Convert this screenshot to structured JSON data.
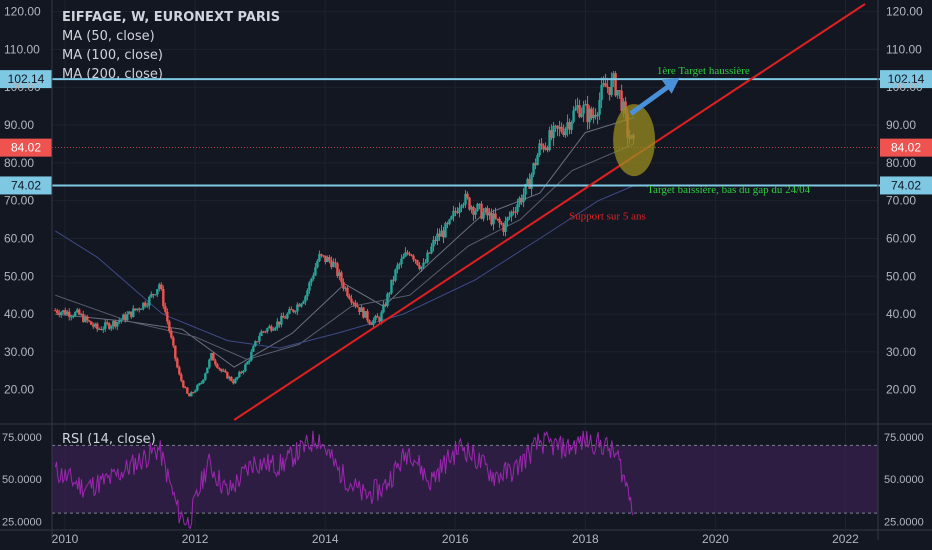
{
  "legend": {
    "symbol": "EIFFAGE, W, EURONEXT PARIS",
    "ma50": "MA (50, close)",
    "ma100": "MA (100, close)",
    "ma200": "MA (200, close)"
  },
  "rsi_legend": "RSI (14, close)",
  "colors": {
    "background": "#131722",
    "level_line": "#7ec8e3",
    "trend_line": "#e02020",
    "price_badge": "#ef5350",
    "rsi_fill": "#3a2150",
    "rsi_line": "#9c27b0",
    "arrow": "#4a90d9",
    "ellipse": "#9a8d1f",
    "target_text": "#2ecc40",
    "support_text": "#e02020"
  },
  "chart_data": [
    {
      "type": "candlestick",
      "panel": "price",
      "x_ticks": [
        "2010",
        "2012",
        "2014",
        "2016",
        "2018",
        "2020",
        "2022"
      ],
      "y_ticks": [
        "20.00",
        "30.00",
        "40.00",
        "50.00",
        "60.00",
        "70.00",
        "80.00",
        "90.00",
        "100.00",
        "110.00",
        "120.00"
      ],
      "ylim": [
        12,
        122
      ],
      "xlim": [
        2009.8,
        2022.5
      ],
      "price_path": [
        [
          2009.85,
          41
        ],
        [
          2010.2,
          40
        ],
        [
          2010.5,
          36
        ],
        [
          2010.8,
          38
        ],
        [
          2011.0,
          40
        ],
        [
          2011.3,
          44
        ],
        [
          2011.45,
          48
        ],
        [
          2011.6,
          36
        ],
        [
          2011.75,
          24
        ],
        [
          2011.9,
          18
        ],
        [
          2012.1,
          22
        ],
        [
          2012.25,
          29
        ],
        [
          2012.4,
          25
        ],
        [
          2012.6,
          22
        ],
        [
          2012.8,
          27
        ],
        [
          2013.0,
          35
        ],
        [
          2013.3,
          38
        ],
        [
          2013.5,
          41
        ],
        [
          2013.7,
          45
        ],
        [
          2013.9,
          55
        ],
        [
          2014.1,
          54
        ],
        [
          2014.3,
          47
        ],
        [
          2014.5,
          42
        ],
        [
          2014.7,
          38
        ],
        [
          2014.85,
          39
        ],
        [
          2015.1,
          52
        ],
        [
          2015.3,
          57
        ],
        [
          2015.5,
          52
        ],
        [
          2015.7,
          60
        ],
        [
          2015.9,
          63
        ],
        [
          2016.1,
          71
        ],
        [
          2016.3,
          68
        ],
        [
          2016.5,
          66
        ],
        [
          2016.75,
          63
        ],
        [
          2016.9,
          68
        ],
        [
          2017.1,
          73
        ],
        [
          2017.3,
          84
        ],
        [
          2017.5,
          87
        ],
        [
          2017.7,
          90
        ],
        [
          2017.9,
          95
        ],
        [
          2018.1,
          92
        ],
        [
          2018.3,
          100
        ],
        [
          2018.45,
          101
        ],
        [
          2018.55,
          97
        ],
        [
          2018.65,
          88
        ],
        [
          2018.75,
          84
        ]
      ],
      "price_labels": {
        "upper_level": "102.14",
        "last_price": "84.02",
        "lower_level": "74.02"
      },
      "levels": [
        102.14,
        74.02
      ],
      "last_price": 84.02,
      "moving_averages": [
        {
          "period": 50,
          "points": [
            [
              2009.85,
              40
            ],
            [
              2011.0,
              38
            ],
            [
              2011.8,
              36
            ],
            [
              2012.6,
              26
            ],
            [
              2013.5,
              35
            ],
            [
              2014.3,
              48
            ],
            [
              2014.9,
              42
            ],
            [
              2015.7,
              55
            ],
            [
              2016.4,
              66
            ],
            [
              2017.3,
              72
            ],
            [
              2018.0,
              88
            ],
            [
              2018.75,
              92
            ]
          ]
        },
        {
          "period": 100,
          "points": [
            [
              2009.85,
              45
            ],
            [
              2011.0,
              38
            ],
            [
              2012.0,
              34
            ],
            [
              2012.8,
              28
            ],
            [
              2013.6,
              32
            ],
            [
              2014.4,
              42
            ],
            [
              2015.3,
              45
            ],
            [
              2016.2,
              58
            ],
            [
              2017.0,
              65
            ],
            [
              2017.8,
              78
            ],
            [
              2018.75,
              85
            ]
          ]
        },
        {
          "period": 200,
          "points": [
            [
              2009.85,
              62
            ],
            [
              2010.5,
              55
            ],
            [
              2011.5,
              40
            ],
            [
              2012.5,
              33
            ],
            [
              2013.3,
              31
            ],
            [
              2014.2,
              35
            ],
            [
              2015.2,
              40
            ],
            [
              2016.3,
              49
            ],
            [
              2017.3,
              60
            ],
            [
              2018.2,
              70
            ],
            [
              2018.75,
              74
            ]
          ]
        }
      ],
      "trend_line": {
        "label": "Support sur 5 ans",
        "from": [
          2012.6,
          12
        ],
        "to": [
          2022.3,
          122
        ]
      },
      "annotations": [
        {
          "text": "1ère Target haussière",
          "x": 2019.1,
          "y": 103.5
        },
        {
          "text": "Target baissière, bas du gap du 24/04",
          "x": 2018.95,
          "y": 72
        },
        {
          "text": "Support sur 5 ans",
          "x": 2017.75,
          "y": 65
        }
      ]
    },
    {
      "type": "line",
      "panel": "rsi",
      "title": "RSI (14, close)",
      "y_ticks": [
        "25.0000",
        "50.0000",
        "75.0000"
      ],
      "ylim": [
        20,
        82
      ],
      "band": [
        30,
        70
      ],
      "values": [
        [
          2009.85,
          55
        ],
        [
          2010.3,
          45
        ],
        [
          2010.7,
          50
        ],
        [
          2011.1,
          60
        ],
        [
          2011.45,
          68
        ],
        [
          2011.75,
          30
        ],
        [
          2011.9,
          24
        ],
        [
          2012.2,
          60
        ],
        [
          2012.5,
          42
        ],
        [
          2012.9,
          60
        ],
        [
          2013.3,
          58
        ],
        [
          2013.9,
          75
        ],
        [
          2014.2,
          55
        ],
        [
          2014.6,
          40
        ],
        [
          2014.9,
          45
        ],
        [
          2015.3,
          68
        ],
        [
          2015.6,
          48
        ],
        [
          2015.9,
          62
        ],
        [
          2016.1,
          70
        ],
        [
          2016.6,
          52
        ],
        [
          2016.9,
          55
        ],
        [
          2017.3,
          72
        ],
        [
          2017.7,
          68
        ],
        [
          2018.0,
          73
        ],
        [
          2018.3,
          70
        ],
        [
          2018.5,
          63
        ],
        [
          2018.6,
          50
        ],
        [
          2018.75,
          33
        ]
      ]
    }
  ]
}
